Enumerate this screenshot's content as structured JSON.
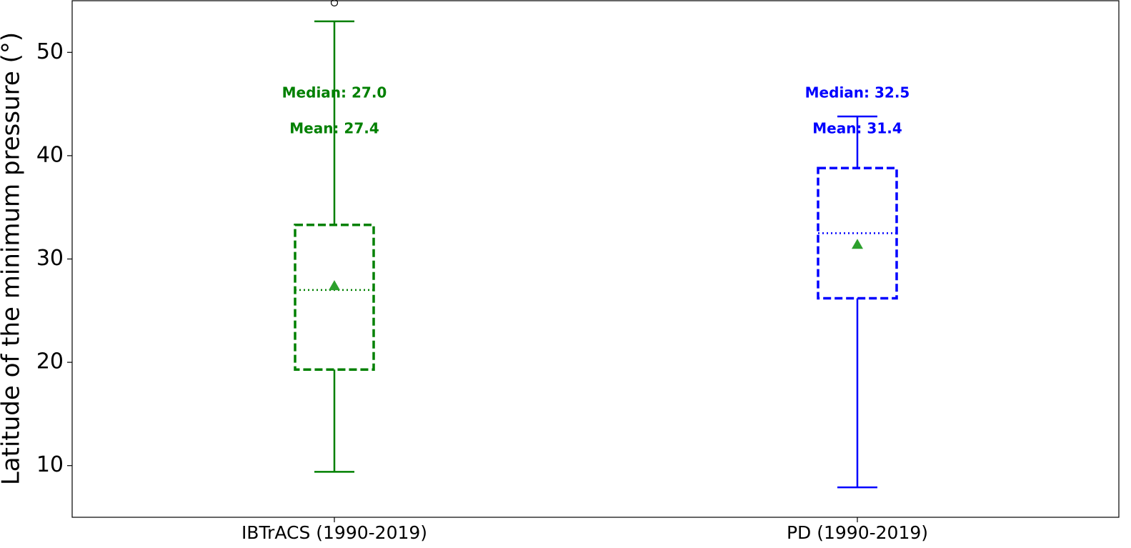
{
  "chart_data": {
    "type": "box",
    "ylabel": "Latitude of the minimum pressure (°)",
    "categories": [
      "IBTrACS (1990-2019)",
      "PD (1990-2019)"
    ],
    "ylim": [
      5,
      55
    ],
    "yticks": [
      10,
      20,
      30,
      40,
      50
    ],
    "mean_color": "#2ca02c",
    "boxes": [
      {
        "color": "#008000",
        "whislo": 9.4,
        "q1": 19.3,
        "med": 27.0,
        "q3": 33.3,
        "whishi": 53.0,
        "mean": 27.4,
        "fliers": [
          54.8
        ],
        "median_label": "Median: 27.0",
        "mean_label": "Mean: 27.4"
      },
      {
        "color": "#0000ff",
        "whislo": 7.9,
        "q1": 26.2,
        "med": 32.5,
        "q3": 38.8,
        "whishi": 43.8,
        "mean": 31.4,
        "fliers": [],
        "median_label": "Median: 32.5",
        "mean_label": "Mean: 31.4"
      }
    ]
  }
}
